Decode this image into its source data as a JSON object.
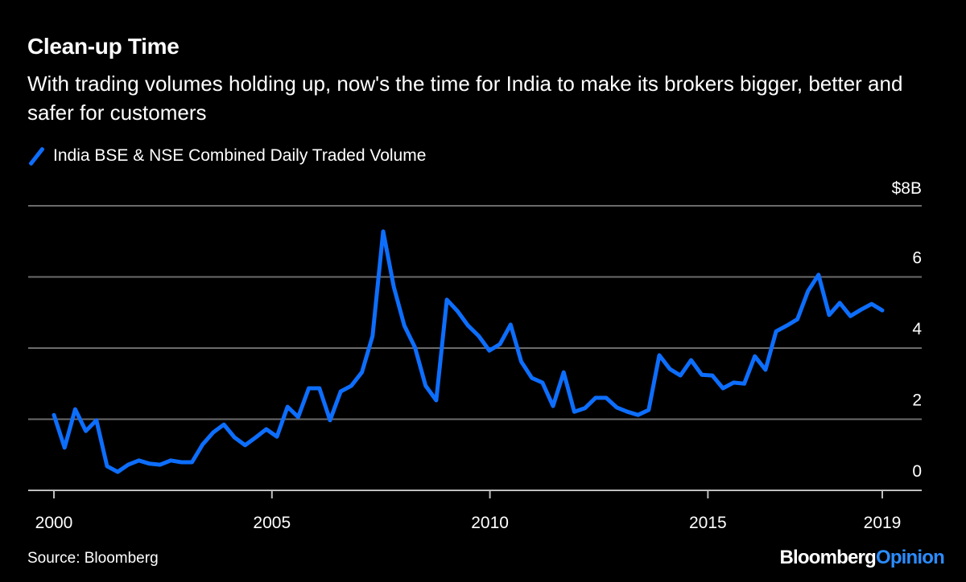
{
  "header": {
    "title": "Clean-up Time",
    "subtitle": "With trading volumes holding up, now's the time for India to make its brokers bigger, better and safer for customers"
  },
  "footer": {
    "source": "Source: Bloomberg",
    "logo_part1": "Bloomberg",
    "logo_part2": "Opinion"
  },
  "colors": {
    "line": "#0d6efd",
    "grid": "#6b6b6b",
    "background": "#000000"
  },
  "chart_data": {
    "type": "line",
    "title": "Clean-up Time",
    "xlabel": "",
    "ylabel": "",
    "y_unit_label": "$8B",
    "xlim": [
      2000,
      2019
    ],
    "ylim": [
      0,
      8
    ],
    "grid": true,
    "legend_placement": "top-left",
    "x_ticks": [
      "2000",
      "2005",
      "2010",
      "2015",
      "2019"
    ],
    "x_tick_values": [
      2000,
      2005,
      2010,
      2015,
      2019
    ],
    "y_ticks": [
      "0",
      "2",
      "4",
      "6"
    ],
    "y_tick_values": [
      0,
      2,
      4,
      6
    ],
    "series": [
      {
        "name": "India BSE & NSE Combined Daily Traded Volume",
        "x_start": 2000,
        "x_end": 2019,
        "values": [
          2.12,
          1.2,
          2.28,
          1.67,
          1.97,
          0.68,
          0.52,
          0.72,
          0.84,
          0.75,
          0.72,
          0.84,
          0.79,
          0.79,
          1.29,
          1.63,
          1.85,
          1.49,
          1.27,
          1.49,
          1.72,
          1.51,
          2.35,
          2.06,
          2.87,
          2.87,
          1.97,
          2.78,
          2.94,
          3.32,
          4.34,
          7.28,
          5.72,
          4.63,
          4.02,
          2.94,
          2.53,
          5.36,
          5.04,
          4.63,
          4.34,
          3.93,
          4.11,
          4.66,
          3.62,
          3.16,
          3.03,
          2.37,
          3.32,
          2.21,
          2.31,
          2.6,
          2.6,
          2.33,
          2.21,
          2.12,
          2.26,
          3.8,
          3.41,
          3.23,
          3.66,
          3.25,
          3.23,
          2.87,
          3.03,
          3.0,
          3.77,
          3.39,
          4.47,
          4.63,
          4.81,
          5.6,
          6.06,
          4.93,
          5.27,
          4.9,
          5.08,
          5.24,
          5.06
        ]
      }
    ]
  }
}
